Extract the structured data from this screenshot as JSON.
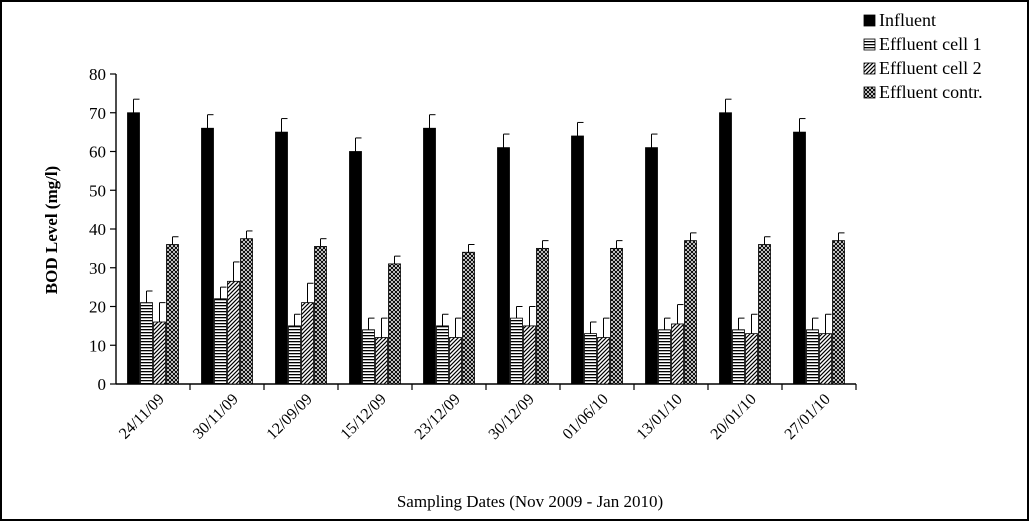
{
  "chart_data": {
    "type": "bar",
    "title": "",
    "xlabel": "Sampling Dates (Nov 2009 - Jan 2010)",
    "ylabel": "BOD Level (mg/l)",
    "ylim": [
      0,
      80
    ],
    "yticks": [
      0,
      10,
      20,
      30,
      40,
      50,
      60,
      70,
      80
    ],
    "grid": false,
    "legend_position": "top-right",
    "categories": [
      "24/11/09",
      "30/11/09",
      "12/09/09",
      "15/12/09",
      "23/12/09",
      "30/12/09",
      "01/06/10",
      "13/01/10",
      "20/01/10",
      "27/01/10"
    ],
    "series": [
      {
        "name": "Influent",
        "pattern": "solid",
        "color": "#000000",
        "values": [
          70,
          66,
          65,
          60,
          66,
          61,
          64,
          61,
          70,
          65
        ],
        "error": [
          3.5,
          3.5,
          3.5,
          3.5,
          3.5,
          3.5,
          3.5,
          3.5,
          3.5,
          3.5
        ]
      },
      {
        "name": "Effluent cell 1",
        "pattern": "horizontal",
        "color": "#000000",
        "values": [
          21,
          22,
          15,
          14,
          15,
          17,
          13,
          14,
          14,
          14
        ],
        "error": [
          3,
          3,
          3,
          3,
          3,
          3,
          3,
          3,
          3,
          3
        ]
      },
      {
        "name": "Effluent cell 2",
        "pattern": "diagonal",
        "color": "#000000",
        "values": [
          16,
          26.5,
          21,
          12,
          12,
          15,
          12,
          15.5,
          13,
          13
        ],
        "error": [
          5,
          5,
          5,
          5,
          5,
          5,
          5,
          5,
          5,
          5
        ]
      },
      {
        "name": "Effluent contr.",
        "pattern": "crosshatch",
        "color": "#000000",
        "values": [
          36,
          37.5,
          35.5,
          31,
          34,
          35,
          35,
          37,
          36,
          37
        ],
        "error": [
          2,
          2,
          2,
          2,
          2,
          2,
          2,
          2,
          2,
          2
        ]
      }
    ]
  }
}
